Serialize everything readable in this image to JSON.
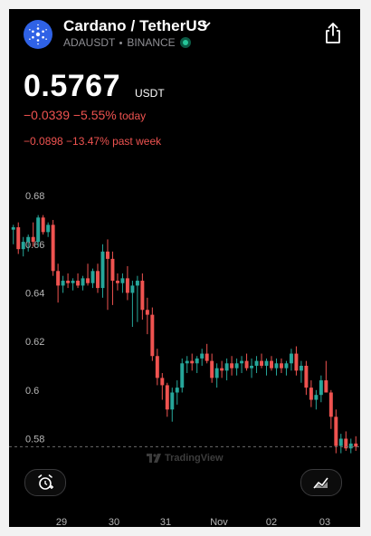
{
  "header": {
    "title": "Cardano / TetherUS",
    "symbol": "ADAUSDT",
    "exchange": "BINANCE"
  },
  "quote": {
    "price": "0.5767",
    "unit": "USDT",
    "change_today": "−0.0339 −5.55%",
    "change_today_suffix": "today",
    "change_week": "−0.0898 −13.47% past week"
  },
  "watermark": "TradingView",
  "colors": {
    "up": "#26a69a",
    "down": "#ef5350",
    "background": "#000000",
    "logo": "#2f62e6"
  },
  "icons": [
    "cardano-logo-icon",
    "chevron-down-icon",
    "share-icon",
    "alarm-add-icon",
    "indicator-icon"
  ],
  "chart_data": {
    "type": "candlestick",
    "symbol": "ADAUSDT",
    "y_ticks": [
      0.68,
      0.66,
      0.64,
      0.62,
      0.6,
      0.58
    ],
    "x_ticks": [
      "29",
      "30",
      "31",
      "Nov",
      "02",
      "03"
    ],
    "ylim": [
      0.5705,
      0.686
    ],
    "last_price_line": 0.5767,
    "grid": false,
    "candles": [
      {
        "o": 0.666,
        "h": 0.668,
        "l": 0.66,
        "c": 0.667
      },
      {
        "o": 0.667,
        "h": 0.669,
        "l": 0.656,
        "c": 0.658
      },
      {
        "o": 0.658,
        "h": 0.663,
        "l": 0.655,
        "c": 0.661
      },
      {
        "o": 0.661,
        "h": 0.664,
        "l": 0.657,
        "c": 0.663
      },
      {
        "o": 0.663,
        "h": 0.669,
        "l": 0.659,
        "c": 0.661
      },
      {
        "o": 0.661,
        "h": 0.672,
        "l": 0.659,
        "c": 0.671
      },
      {
        "o": 0.671,
        "h": 0.672,
        "l": 0.664,
        "c": 0.665
      },
      {
        "o": 0.665,
        "h": 0.669,
        "l": 0.663,
        "c": 0.668
      },
      {
        "o": 0.668,
        "h": 0.67,
        "l": 0.647,
        "c": 0.649
      },
      {
        "o": 0.649,
        "h": 0.652,
        "l": 0.636,
        "c": 0.643
      },
      {
        "o": 0.643,
        "h": 0.647,
        "l": 0.64,
        "c": 0.645
      },
      {
        "o": 0.645,
        "h": 0.648,
        "l": 0.642,
        "c": 0.644
      },
      {
        "o": 0.644,
        "h": 0.646,
        "l": 0.641,
        "c": 0.645
      },
      {
        "o": 0.645,
        "h": 0.648,
        "l": 0.642,
        "c": 0.643
      },
      {
        "o": 0.643,
        "h": 0.647,
        "l": 0.641,
        "c": 0.646
      },
      {
        "o": 0.646,
        "h": 0.652,
        "l": 0.643,
        "c": 0.644
      },
      {
        "o": 0.644,
        "h": 0.65,
        "l": 0.642,
        "c": 0.649
      },
      {
        "o": 0.649,
        "h": 0.652,
        "l": 0.64,
        "c": 0.642
      },
      {
        "o": 0.642,
        "h": 0.66,
        "l": 0.638,
        "c": 0.657
      },
      {
        "o": 0.657,
        "h": 0.662,
        "l": 0.633,
        "c": 0.654
      },
      {
        "o": 0.654,
        "h": 0.657,
        "l": 0.635,
        "c": 0.645
      },
      {
        "o": 0.645,
        "h": 0.648,
        "l": 0.641,
        "c": 0.644
      },
      {
        "o": 0.644,
        "h": 0.648,
        "l": 0.64,
        "c": 0.646
      },
      {
        "o": 0.646,
        "h": 0.651,
        "l": 0.637,
        "c": 0.64
      },
      {
        "o": 0.64,
        "h": 0.645,
        "l": 0.626,
        "c": 0.643
      },
      {
        "o": 0.643,
        "h": 0.647,
        "l": 0.628,
        "c": 0.645
      },
      {
        "o": 0.645,
        "h": 0.648,
        "l": 0.629,
        "c": 0.633
      },
      {
        "o": 0.633,
        "h": 0.638,
        "l": 0.623,
        "c": 0.631
      },
      {
        "o": 0.631,
        "h": 0.634,
        "l": 0.612,
        "c": 0.614
      },
      {
        "o": 0.614,
        "h": 0.617,
        "l": 0.602,
        "c": 0.605
      },
      {
        "o": 0.605,
        "h": 0.607,
        "l": 0.596,
        "c": 0.602
      },
      {
        "o": 0.602,
        "h": 0.603,
        "l": 0.589,
        "c": 0.592
      },
      {
        "o": 0.592,
        "h": 0.601,
        "l": 0.587,
        "c": 0.599
      },
      {
        "o": 0.599,
        "h": 0.604,
        "l": 0.594,
        "c": 0.601
      },
      {
        "o": 0.601,
        "h": 0.613,
        "l": 0.599,
        "c": 0.611
      },
      {
        "o": 0.611,
        "h": 0.614,
        "l": 0.607,
        "c": 0.612
      },
      {
        "o": 0.612,
        "h": 0.615,
        "l": 0.608,
        "c": 0.611
      },
      {
        "o": 0.611,
        "h": 0.614,
        "l": 0.607,
        "c": 0.613
      },
      {
        "o": 0.613,
        "h": 0.617,
        "l": 0.61,
        "c": 0.615
      },
      {
        "o": 0.615,
        "h": 0.619,
        "l": 0.611,
        "c": 0.612
      },
      {
        "o": 0.612,
        "h": 0.615,
        "l": 0.603,
        "c": 0.605
      },
      {
        "o": 0.605,
        "h": 0.611,
        "l": 0.601,
        "c": 0.609
      },
      {
        "o": 0.609,
        "h": 0.612,
        "l": 0.605,
        "c": 0.608
      },
      {
        "o": 0.608,
        "h": 0.613,
        "l": 0.604,
        "c": 0.611
      },
      {
        "o": 0.611,
        "h": 0.614,
        "l": 0.606,
        "c": 0.609
      },
      {
        "o": 0.609,
        "h": 0.613,
        "l": 0.606,
        "c": 0.611
      },
      {
        "o": 0.611,
        "h": 0.614,
        "l": 0.607,
        "c": 0.612
      },
      {
        "o": 0.612,
        "h": 0.615,
        "l": 0.608,
        "c": 0.609
      },
      {
        "o": 0.609,
        "h": 0.613,
        "l": 0.605,
        "c": 0.61
      },
      {
        "o": 0.61,
        "h": 0.614,
        "l": 0.607,
        "c": 0.612
      },
      {
        "o": 0.612,
        "h": 0.615,
        "l": 0.609,
        "c": 0.61
      },
      {
        "o": 0.61,
        "h": 0.613,
        "l": 0.606,
        "c": 0.612
      },
      {
        "o": 0.612,
        "h": 0.614,
        "l": 0.608,
        "c": 0.609
      },
      {
        "o": 0.609,
        "h": 0.613,
        "l": 0.606,
        "c": 0.611
      },
      {
        "o": 0.611,
        "h": 0.613,
        "l": 0.607,
        "c": 0.609
      },
      {
        "o": 0.609,
        "h": 0.612,
        "l": 0.606,
        "c": 0.611
      },
      {
        "o": 0.611,
        "h": 0.617,
        "l": 0.608,
        "c": 0.615
      },
      {
        "o": 0.615,
        "h": 0.618,
        "l": 0.606,
        "c": 0.608
      },
      {
        "o": 0.608,
        "h": 0.612,
        "l": 0.603,
        "c": 0.61
      },
      {
        "o": 0.61,
        "h": 0.612,
        "l": 0.598,
        "c": 0.601
      },
      {
        "o": 0.601,
        "h": 0.604,
        "l": 0.593,
        "c": 0.596
      },
      {
        "o": 0.596,
        "h": 0.6,
        "l": 0.592,
        "c": 0.598
      },
      {
        "o": 0.598,
        "h": 0.606,
        "l": 0.595,
        "c": 0.604
      },
      {
        "o": 0.604,
        "h": 0.612,
        "l": 0.6,
        "c": 0.599
      },
      {
        "o": 0.599,
        "h": 0.6,
        "l": 0.584,
        "c": 0.589
      },
      {
        "o": 0.589,
        "h": 0.592,
        "l": 0.574,
        "c": 0.577
      },
      {
        "o": 0.577,
        "h": 0.582,
        "l": 0.574,
        "c": 0.58
      },
      {
        "o": 0.58,
        "h": 0.583,
        "l": 0.575,
        "c": 0.576
      },
      {
        "o": 0.576,
        "h": 0.58,
        "l": 0.574,
        "c": 0.578
      },
      {
        "o": 0.578,
        "h": 0.581,
        "l": 0.575,
        "c": 0.5767
      }
    ]
  }
}
